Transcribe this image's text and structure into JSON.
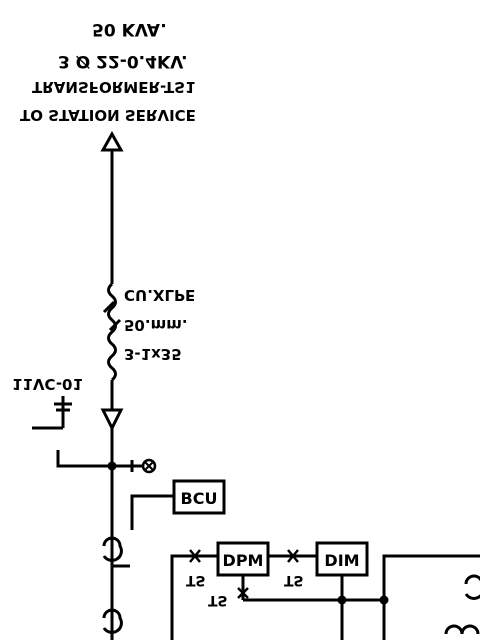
{
  "title_lines": [
    "50 KVA.",
    "3 Ø 22-0.4KV.",
    "TRANSFORMER-TS1",
    "TO STATION SERVICE"
  ],
  "cable_lines": [
    "CU.XLPE",
    "50.mm.",
    "3-1x35"
  ],
  "equipment_tag": "11VC-01",
  "boxes": {
    "bcu": "BCU",
    "dpm": "DPM",
    "dim": "DIM"
  },
  "ts_labels": [
    "TS",
    "TS",
    "TS"
  ]
}
